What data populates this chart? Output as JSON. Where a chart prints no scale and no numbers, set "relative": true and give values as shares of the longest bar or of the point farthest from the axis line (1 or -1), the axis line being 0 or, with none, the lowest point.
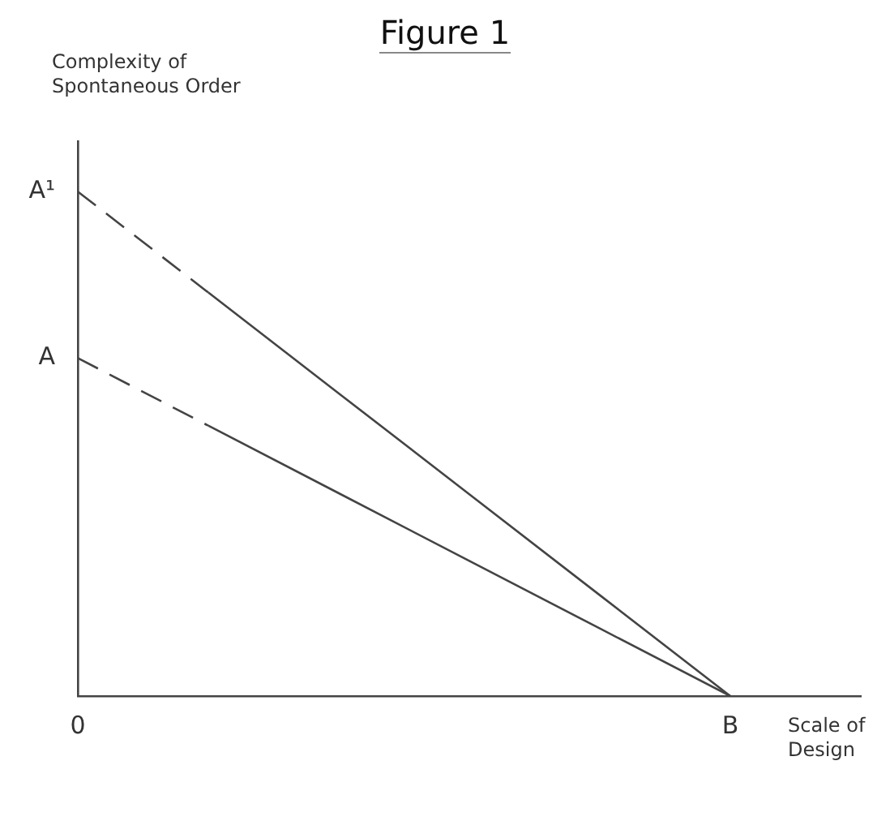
{
  "chart_data": {
    "type": "line",
    "title": "Figure 1",
    "ylabel": "Complexity of\nSpontaneous Order",
    "xlabel": "Scale of\nDesign",
    "relative": true,
    "marker": "none",
    "grid": false,
    "categories": [
      "0",
      null,
      null,
      null,
      null,
      "B",
      null
    ],
    "series": [
      {
        "color": "#444444",
        "line_style": "dashed",
        "values": [
          1,
          0.8,
          null,
          null,
          null,
          null,
          null
        ]
      },
      {
        "color": "#444444",
        "line_style": "solid",
        "values": [
          null,
          0.8,
          0.6,
          0.4,
          0.2,
          0,
          null
        ]
      },
      {
        "color": "#444444",
        "line_style": "dashed",
        "values": [
          0.67,
          0.536,
          null,
          null,
          null,
          null,
          null
        ]
      },
      {
        "color": "#444444",
        "line_style": "solid",
        "values": [
          null,
          0.536,
          0.402,
          0.268,
          0.134,
          0,
          null
        ]
      }
    ],
    "annotations": [
      {
        "text": "A¹",
        "x": "0",
        "y": 1
      },
      {
        "text": "A",
        "x": "0",
        "y": 0.67
      }
    ]
  }
}
